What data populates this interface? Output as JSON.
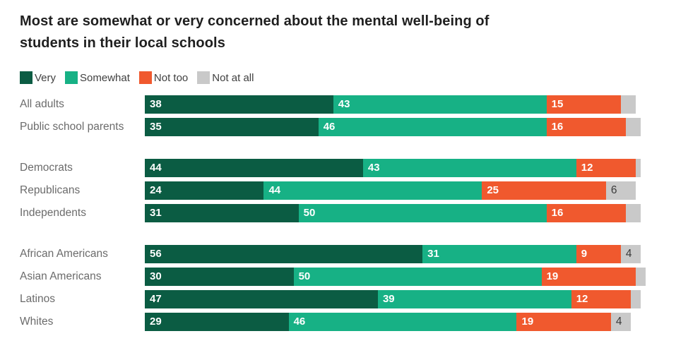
{
  "chart_data": {
    "type": "bar",
    "variant": "horizontal-stacked",
    "title": "Most are somewhat or very concerned about the mental well-being of students in their local schools",
    "title_lines": [
      "Most are somewhat or very concerned about the mental well-being of",
      "students in their local schools"
    ],
    "xlim": [
      0,
      100
    ],
    "grid": false,
    "legend_position": "top-left",
    "legend": [
      {
        "name": "Very",
        "key": "very",
        "color": "#0b5c43"
      },
      {
        "name": "Somewhat",
        "key": "somewhat",
        "color": "#17b185"
      },
      {
        "name": "Not too",
        "key": "not_too",
        "color": "#f0592e"
      },
      {
        "name": "Not at all",
        "key": "not_at_all",
        "color": "#c9c9c9"
      }
    ],
    "groups": [
      {
        "rows": [
          {
            "category": "All adults",
            "values": [
              38,
              43,
              15,
              3
            ],
            "labels": [
              "38",
              "43",
              "15",
              ""
            ]
          },
          {
            "category": "Public school parents",
            "values": [
              35,
              46,
              16,
              3
            ],
            "labels": [
              "35",
              "46",
              "16",
              ""
            ]
          }
        ]
      },
      {
        "rows": [
          {
            "category": "Democrats",
            "values": [
              44,
              43,
              12,
              1
            ],
            "labels": [
              "44",
              "43",
              "12",
              ""
            ]
          },
          {
            "category": "Republicans",
            "values": [
              24,
              44,
              25,
              6
            ],
            "labels": [
              "24",
              "44",
              "25",
              "6"
            ]
          },
          {
            "category": "Independents",
            "values": [
              31,
              50,
              16,
              3
            ],
            "labels": [
              "31",
              "50",
              "16",
              ""
            ]
          }
        ]
      },
      {
        "rows": [
          {
            "category": "African Americans",
            "values": [
              56,
              31,
              9,
              4
            ],
            "labels": [
              "56",
              "31",
              "9",
              "4"
            ]
          },
          {
            "category": "Asian Americans",
            "values": [
              30,
              50,
              19,
              2
            ],
            "labels": [
              "30",
              "50",
              "19",
              ""
            ]
          },
          {
            "category": "Latinos",
            "values": [
              47,
              39,
              12,
              2
            ],
            "labels": [
              "47",
              "39",
              "12",
              ""
            ]
          },
          {
            "category": "Whites",
            "values": [
              29,
              46,
              19,
              4
            ],
            "labels": [
              "29",
              "46",
              "19",
              "4"
            ]
          }
        ]
      }
    ]
  }
}
